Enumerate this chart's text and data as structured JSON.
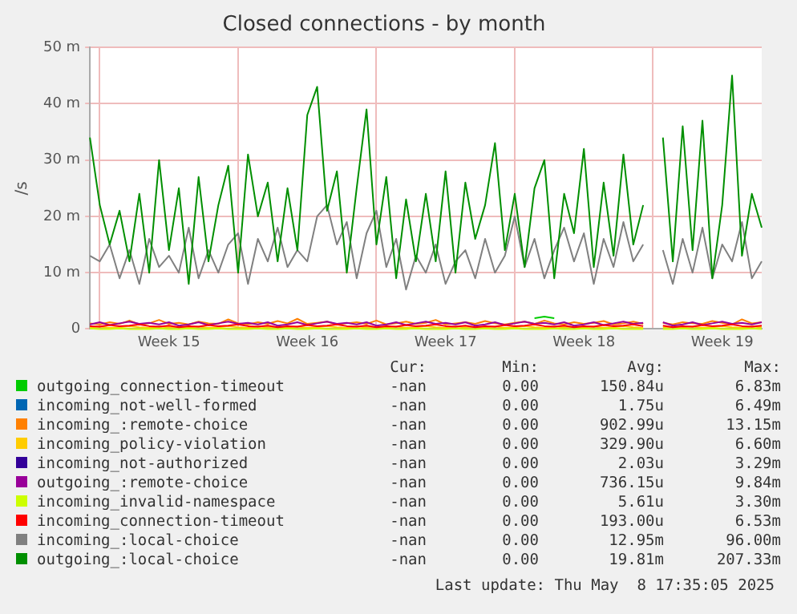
{
  "chart_data": {
    "type": "line",
    "title": "Closed connections - by month",
    "ylabel": "/s",
    "categories": [
      null,
      null,
      null,
      null,
      null,
      null,
      null,
      null,
      "Week 15",
      null,
      null,
      null,
      null,
      null,
      null,
      null,
      null,
      null,
      null,
      null,
      null,
      null,
      "Week 16",
      null,
      null,
      null,
      null,
      null,
      null,
      null,
      null,
      null,
      null,
      null,
      null,
      null,
      "Week 17",
      null,
      null,
      null,
      null,
      null,
      null,
      null,
      null,
      null,
      null,
      null,
      null,
      null,
      "Week 18",
      null,
      null,
      null,
      null,
      null,
      null,
      null,
      null,
      null,
      null,
      null,
      null,
      null,
      "Week 19",
      null,
      null,
      null,
      null
    ],
    "ylim": [
      0,
      50
    ],
    "yticks": [
      0,
      {
        "value": 10,
        "label": "10 m"
      },
      {
        "value": 20,
        "label": "20 m"
      },
      {
        "value": 30,
        "label": "30 m"
      },
      {
        "value": 40,
        "label": "40 m"
      },
      {
        "value": 50,
        "label": "50 m"
      }
    ],
    "grid": true,
    "legend": "bottom",
    "marker": "none",
    "line_style": "solid",
    "series": [
      {
        "name": "outgoing_connection-timeout",
        "color": "#00cc00",
        "values": [
          null,
          null,
          null,
          null,
          null,
          null,
          null,
          null,
          null,
          null,
          null,
          null,
          null,
          null,
          null,
          null,
          null,
          null,
          null,
          null,
          null,
          null,
          null,
          null,
          null,
          null,
          null,
          null,
          null,
          null,
          null,
          null,
          null,
          null,
          null,
          null,
          null,
          null,
          null,
          null,
          null,
          null,
          null,
          null,
          null,
          1.9,
          2.2,
          1.9,
          null,
          null,
          null,
          null,
          null,
          null,
          null,
          null,
          null,
          null,
          null,
          null,
          null,
          null,
          null,
          null,
          null,
          null,
          null,
          null,
          null
        ]
      },
      {
        "name": "incoming_not-well-formed",
        "color": "#0066b3",
        "values": [
          null,
          null,
          null,
          null,
          null,
          null,
          null,
          null,
          null,
          null,
          null,
          null,
          null,
          null,
          null,
          null,
          null,
          null,
          null,
          null,
          null,
          null,
          null,
          null,
          null,
          null,
          null,
          null,
          null,
          null,
          null,
          null,
          null,
          null,
          null,
          null,
          null,
          null,
          null,
          null,
          null,
          null,
          null,
          null,
          null,
          null,
          null,
          null,
          null,
          null,
          null,
          null,
          null,
          null,
          null,
          null,
          null,
          null,
          null,
          null,
          null,
          null,
          null,
          null,
          null,
          null,
          null,
          null,
          null
        ]
      },
      {
        "name": "incoming_:remote-choice",
        "color": "#ff8000",
        "values": [
          1,
          0.8,
          1.2,
          0.9,
          1.5,
          0.8,
          1,
          1.6,
          0.9,
          1.1,
          0.8,
          1.3,
          1,
          0.9,
          1.7,
          1,
          0.8,
          1.2,
          0.9,
          1.4,
          1,
          1.8,
          0.9,
          1.1,
          1.3,
          0.8,
          1,
          1.2,
          0.9,
          1.5,
          0.8,
          1,
          1.3,
          0.9,
          1.1,
          1.6,
          0.8,
          1,
          1.2,
          0.9,
          1.4,
          1,
          0.8,
          1.1,
          1.3,
          0.9,
          1.5,
          1,
          0.8,
          1.2,
          0.9,
          1.1,
          1.4,
          0.8,
          1,
          1.3,
          0.9,
          null,
          1.1,
          0.8,
          1.2,
          1,
          0.9,
          1.4,
          1.1,
          0.8,
          1.7,
          1,
          1.2
        ]
      },
      {
        "name": "incoming_policy-violation",
        "color": "#ffcc00",
        "values": [
          0.3,
          0.4,
          0.2,
          0.3,
          0.5,
          0.3,
          0.2,
          0.4,
          0.3,
          0.3,
          0.3,
          0.4,
          0.2,
          0.3,
          0.5,
          0.3,
          0.2,
          0.4,
          0.3,
          0.3,
          0.3,
          0.4,
          0.2,
          0.3,
          0.5,
          0.3,
          0.2,
          0.4,
          0.3,
          0.3,
          0.3,
          0.4,
          0.2,
          0.3,
          0.5,
          0.3,
          0.2,
          0.4,
          0.3,
          0.3,
          0.3,
          0.4,
          0.2,
          0.3,
          0.5,
          0.3,
          0.2,
          0.4,
          0.3,
          0.3,
          0.3,
          0.4,
          0.2,
          0.3,
          0.5,
          0.3,
          0.2,
          null,
          0.3,
          0.3,
          0.3,
          0.4,
          0.2,
          0.3,
          0.5,
          0.3,
          0.2,
          0.4,
          0.3
        ]
      },
      {
        "name": "incoming_not-authorized",
        "color": "#330099",
        "values": [
          null,
          null,
          null,
          null,
          null,
          null,
          null,
          null,
          null,
          null,
          null,
          null,
          null,
          null,
          null,
          null,
          null,
          null,
          null,
          null,
          null,
          null,
          null,
          null,
          null,
          null,
          null,
          null,
          null,
          null,
          null,
          null,
          null,
          null,
          null,
          null,
          null,
          null,
          null,
          null,
          null,
          null,
          null,
          null,
          null,
          null,
          null,
          null,
          null,
          null,
          null,
          null,
          null,
          null,
          null,
          null,
          null,
          null,
          null,
          null,
          null,
          null,
          null,
          null,
          null,
          null,
          null,
          null,
          null
        ]
      },
      {
        "name": "outgoing_:remote-choice",
        "color": "#990099",
        "values": [
          0.8,
          1.2,
          0.7,
          1,
          1.3,
          0.9,
          1.1,
          0.8,
          1.2,
          0.6,
          0.8,
          1.2,
          0.7,
          1,
          1.3,
          0.9,
          1.1,
          0.8,
          1.2,
          0.6,
          0.8,
          1.2,
          0.7,
          1,
          1.3,
          0.9,
          1.1,
          0.8,
          1.2,
          0.6,
          0.8,
          1.2,
          0.7,
          1,
          1.3,
          0.9,
          1.1,
          0.8,
          1.2,
          0.6,
          0.8,
          1.2,
          0.7,
          1,
          1.3,
          0.9,
          1.1,
          0.8,
          1.2,
          0.6,
          0.8,
          1.2,
          0.7,
          1,
          1.3,
          0.9,
          1.1,
          null,
          1.2,
          0.6,
          0.8,
          1.2,
          0.7,
          1,
          1.3,
          0.9,
          1.1,
          0.8,
          1.2
        ]
      },
      {
        "name": "incoming_invalid-namespace",
        "color": "#ccff00",
        "values": [
          0.1,
          0,
          0,
          0.1,
          0,
          0,
          0,
          0.1,
          0,
          0,
          0.1,
          0,
          0,
          0.1,
          0,
          0,
          0,
          0.1,
          0,
          0,
          0.1,
          0,
          0,
          0.1,
          0,
          0,
          0,
          0.1,
          0,
          0,
          0.1,
          0,
          0,
          0.1,
          0,
          0,
          0,
          0.1,
          0,
          0,
          0.1,
          0,
          0,
          0.1,
          0,
          0,
          0,
          0.1,
          0,
          0,
          0.1,
          0,
          0,
          0.1,
          0,
          0,
          0,
          null,
          0,
          0,
          0.1,
          0,
          0,
          0.1,
          0,
          0,
          0,
          0.1,
          0
        ]
      },
      {
        "name": "incoming_connection-timeout",
        "color": "#ff0000",
        "values": [
          0.5,
          0.4,
          0.7,
          0.5,
          0.6,
          0.8,
          0.5,
          0.4,
          0.6,
          0.3,
          0.5,
          0.4,
          0.7,
          0.5,
          0.6,
          0.8,
          0.5,
          0.4,
          0.6,
          0.3,
          0.5,
          0.4,
          0.7,
          0.5,
          0.6,
          0.8,
          0.5,
          0.4,
          0.6,
          0.3,
          0.5,
          0.4,
          0.7,
          0.5,
          0.6,
          0.8,
          0.5,
          0.4,
          0.6,
          0.3,
          0.5,
          0.4,
          0.7,
          0.5,
          0.6,
          0.8,
          0.5,
          0.4,
          0.6,
          0.3,
          0.5,
          0.4,
          0.7,
          0.5,
          0.6,
          0.8,
          0.5,
          null,
          0.6,
          0.3,
          0.5,
          0.4,
          0.7,
          0.5,
          0.6,
          0.8,
          0.5,
          0.4,
          0.6
        ]
      },
      {
        "name": "incoming_:local-choice",
        "color": "#808080",
        "values": [
          13,
          12,
          15,
          9,
          14,
          8,
          16,
          11,
          13,
          10,
          18,
          9,
          14,
          10,
          15,
          17,
          8,
          16,
          12,
          18,
          11,
          14,
          12,
          20,
          22,
          15,
          19,
          9,
          17,
          21,
          11,
          16,
          7,
          13,
          10,
          15,
          8,
          12,
          14,
          9,
          16,
          10,
          13,
          20,
          11,
          16,
          9,
          14,
          18,
          12,
          17,
          8,
          16,
          11,
          19,
          12,
          15,
          null,
          14,
          8,
          16,
          10,
          18,
          9,
          15,
          12,
          19,
          9,
          12
        ]
      },
      {
        "name": "outgoing_:local-choice",
        "color": "#008f00",
        "values": [
          34,
          22,
          15,
          21,
          12,
          24,
          10,
          30,
          14,
          25,
          8,
          27,
          12,
          22,
          29,
          10,
          31,
          20,
          26,
          12,
          25,
          14,
          38,
          43,
          21,
          28,
          10,
          25,
          39,
          15,
          27,
          9,
          23,
          12,
          24,
          12,
          28,
          10,
          26,
          16,
          22,
          33,
          14,
          24,
          11,
          25,
          30,
          9,
          24,
          17,
          32,
          11,
          26,
          13,
          31,
          15,
          22,
          null,
          34,
          12,
          36,
          14,
          37,
          9,
          22,
          45,
          13,
          24,
          18
        ]
      }
    ],
    "annotations": [
      "Cur:",
      "Min:",
      "Avg:",
      "Max:",
      "-nan",
      "0.00",
      "150.84u",
      "6.83m",
      "-nan",
      "0.00",
      "1.75u",
      "6.49m",
      "-nan",
      "0.00",
      "902.99u",
      "13.15m",
      "-nan",
      "0.00",
      "329.90u",
      "6.60m",
      "-nan",
      "0.00",
      "2.03u",
      "3.29m",
      "-nan",
      "0.00",
      "736.15u",
      "9.84m",
      "-nan",
      "0.00",
      "5.61u",
      "3.30m",
      "-nan",
      "0.00",
      "193.00u",
      "6.53m",
      "-nan",
      "0.00",
      "12.95m",
      "96.00m",
      "-nan",
      "0.00",
      "19.81m",
      "207.33m",
      "Last update: Thu May  8 17:35:05 2025"
    ]
  }
}
